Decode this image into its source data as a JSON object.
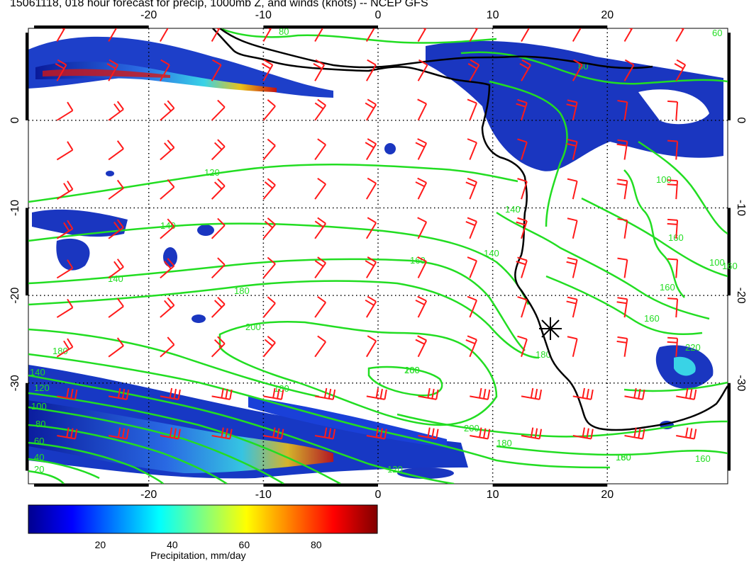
{
  "title": "15061118, 018 hour forecast for precip, 1000mb Z, and winds (knots) -- NCEP GFS",
  "map": {
    "lon_labels": [
      "-20",
      "-10",
      "0",
      "10",
      "20"
    ],
    "lat_labels": [
      "0",
      "-10",
      "-20",
      "-30"
    ],
    "lon_ticks": [
      -20,
      -10,
      0,
      10,
      20
    ],
    "lat_ticks": [
      0,
      -10,
      -20,
      -30
    ],
    "lon_range": [
      -30.5,
      30.5
    ],
    "lat_range": [
      -41.5,
      10.5
    ],
    "grid": "dotted",
    "contour_color": "#22dd22",
    "wind_barb_color": "#ff1a1a",
    "coastline_color": "#000000",
    "contour_labels": [
      "80",
      "80",
      "60",
      "100",
      "100",
      "120",
      "140",
      "140",
      "160",
      "160",
      "160",
      "180",
      "180",
      "180",
      "200",
      "200",
      "220",
      "180",
      "160",
      "180",
      "140",
      "160",
      "140",
      "120",
      "100",
      "80",
      "60",
      "40",
      "20",
      "140",
      "120",
      "160",
      "180",
      "200",
      "160",
      "160"
    ],
    "marker": "station-star"
  },
  "colorbar": {
    "label": "Precipitation, mm/day",
    "ticks": [
      "20",
      "40",
      "60",
      "80"
    ],
    "tick_values": [
      20,
      40,
      60,
      80
    ],
    "range": [
      0,
      97
    ],
    "colors": [
      "#00008f",
      "#0000ff",
      "#0080ff",
      "#00ffff",
      "#80ff80",
      "#ffff00",
      "#ff8000",
      "#ff0000",
      "#800000"
    ]
  }
}
